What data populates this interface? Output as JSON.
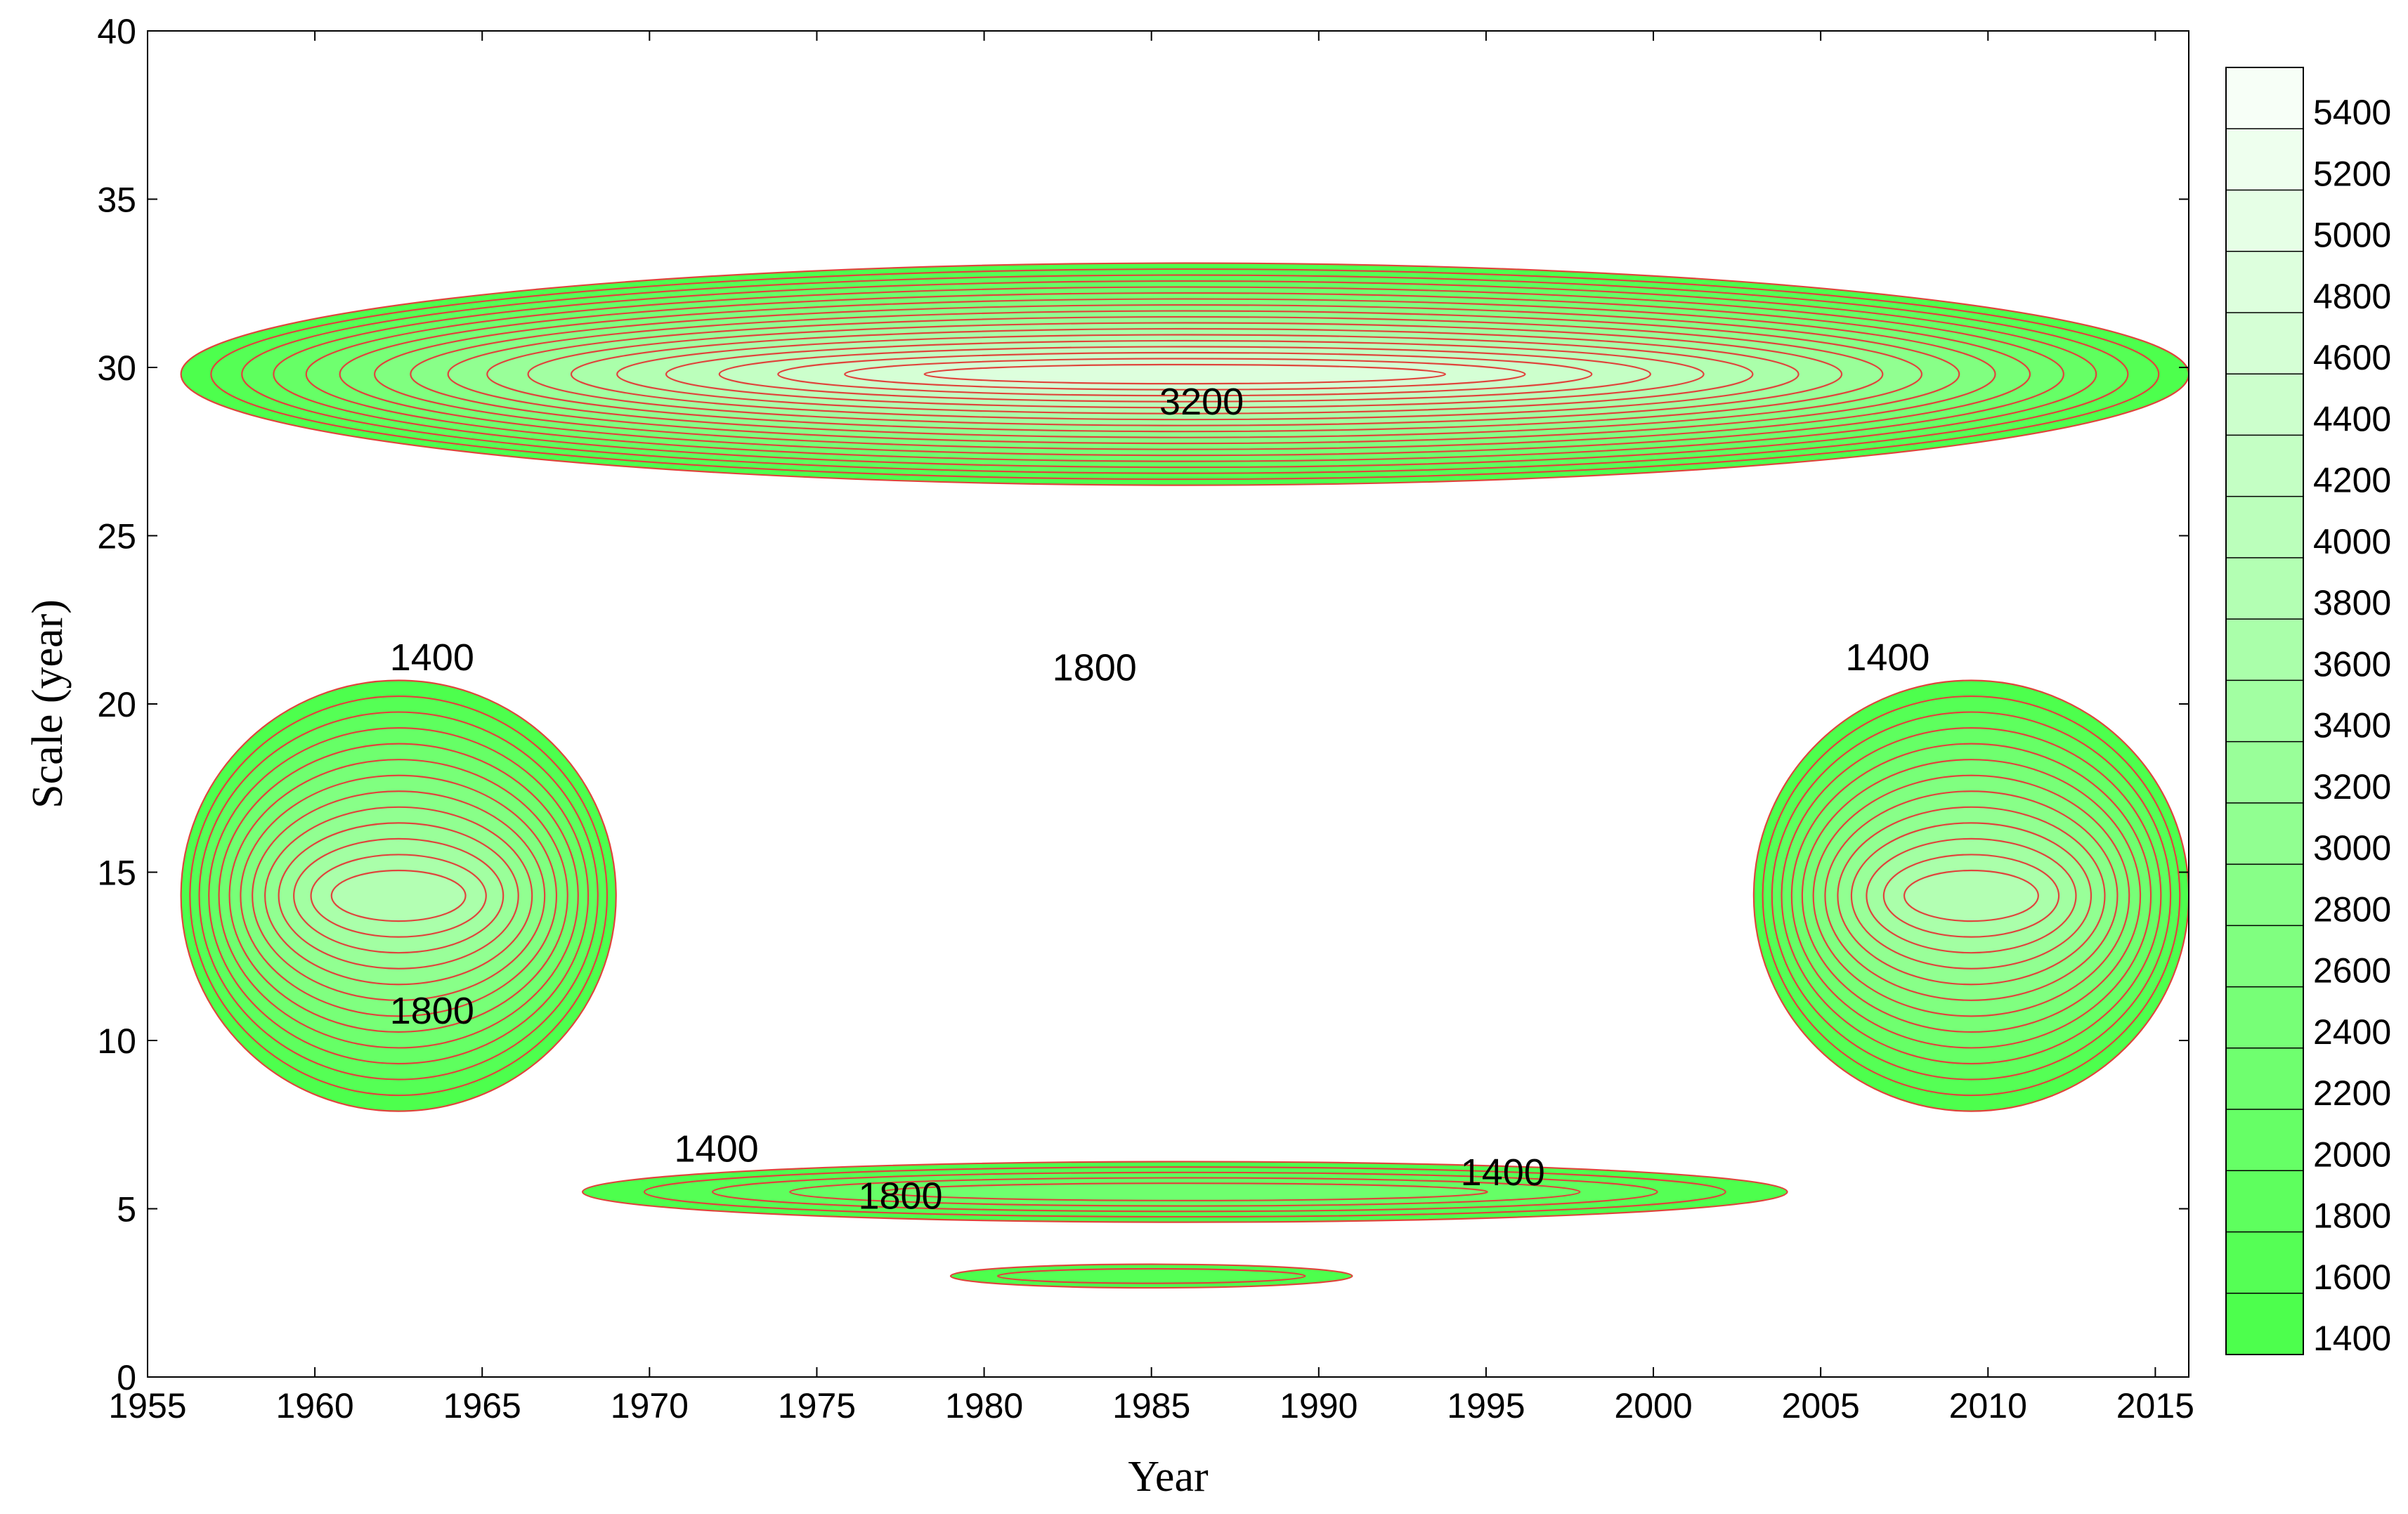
{
  "chart_data": {
    "type": "contour",
    "title": "",
    "xlabel": "Year",
    "ylabel": "Scale (year)",
    "xlim": [
      1955,
      2016
    ],
    "ylim": [
      0,
      40
    ],
    "x_ticks": [
      1955,
      1960,
      1965,
      1970,
      1975,
      1980,
      1985,
      1990,
      1995,
      2000,
      2005,
      2010,
      2015
    ],
    "y_ticks": [
      0,
      5,
      10,
      15,
      20,
      25,
      30,
      35,
      40
    ],
    "colorbar": {
      "levels": [
        1400,
        1600,
        1800,
        2000,
        2200,
        2400,
        2600,
        2800,
        3000,
        3200,
        3400,
        3600,
        3800,
        4000,
        4200,
        4400,
        4600,
        4800,
        5000,
        5200,
        5400
      ],
      "color_low": "#4dff4d",
      "color_high": "#ffffff",
      "placement": "right"
    },
    "contour_line_color": "#e0443c",
    "regions": [
      {
        "name": "band-28-year",
        "x_range": [
          1956,
          2016
        ],
        "y_center": 29.8,
        "y_halfwidth": 3.3,
        "peak_level": 4800
      },
      {
        "name": "band-13-year-left",
        "x_range": [
          1956,
          1969
        ],
        "y_center": 14.3,
        "y_halfwidth": 6.4,
        "peak_level": 3800
      },
      {
        "name": "band-13-year-right",
        "x_range": [
          2003,
          2016
        ],
        "y_center": 14.3,
        "y_halfwidth": 6.4,
        "peak_level": 3800
      },
      {
        "name": "band-6-year",
        "x_range": [
          1968,
          2004
        ],
        "y_center": 5.5,
        "y_halfwidth": 0.9,
        "peak_level": 2200
      },
      {
        "name": "band-3-year",
        "x_range": [
          1979,
          1991
        ],
        "y_center": 3.0,
        "y_halfwidth": 0.35,
        "peak_level": 1600
      }
    ],
    "contour_labels": [
      {
        "text": "3200",
        "x": 1986.5,
        "y": 28.6
      },
      {
        "text": "1400",
        "x": 1963.5,
        "y": 21.0
      },
      {
        "text": "1800",
        "x": 1983.3,
        "y": 20.7
      },
      {
        "text": "1400",
        "x": 2007.0,
        "y": 21.0
      },
      {
        "text": "1800",
        "x": 1963.5,
        "y": 10.5
      },
      {
        "text": "1400",
        "x": 1972.0,
        "y": 6.4
      },
      {
        "text": "1800",
        "x": 1977.5,
        "y": 5.0
      },
      {
        "text": "1400",
        "x": 1995.5,
        "y": 5.7
      }
    ]
  }
}
